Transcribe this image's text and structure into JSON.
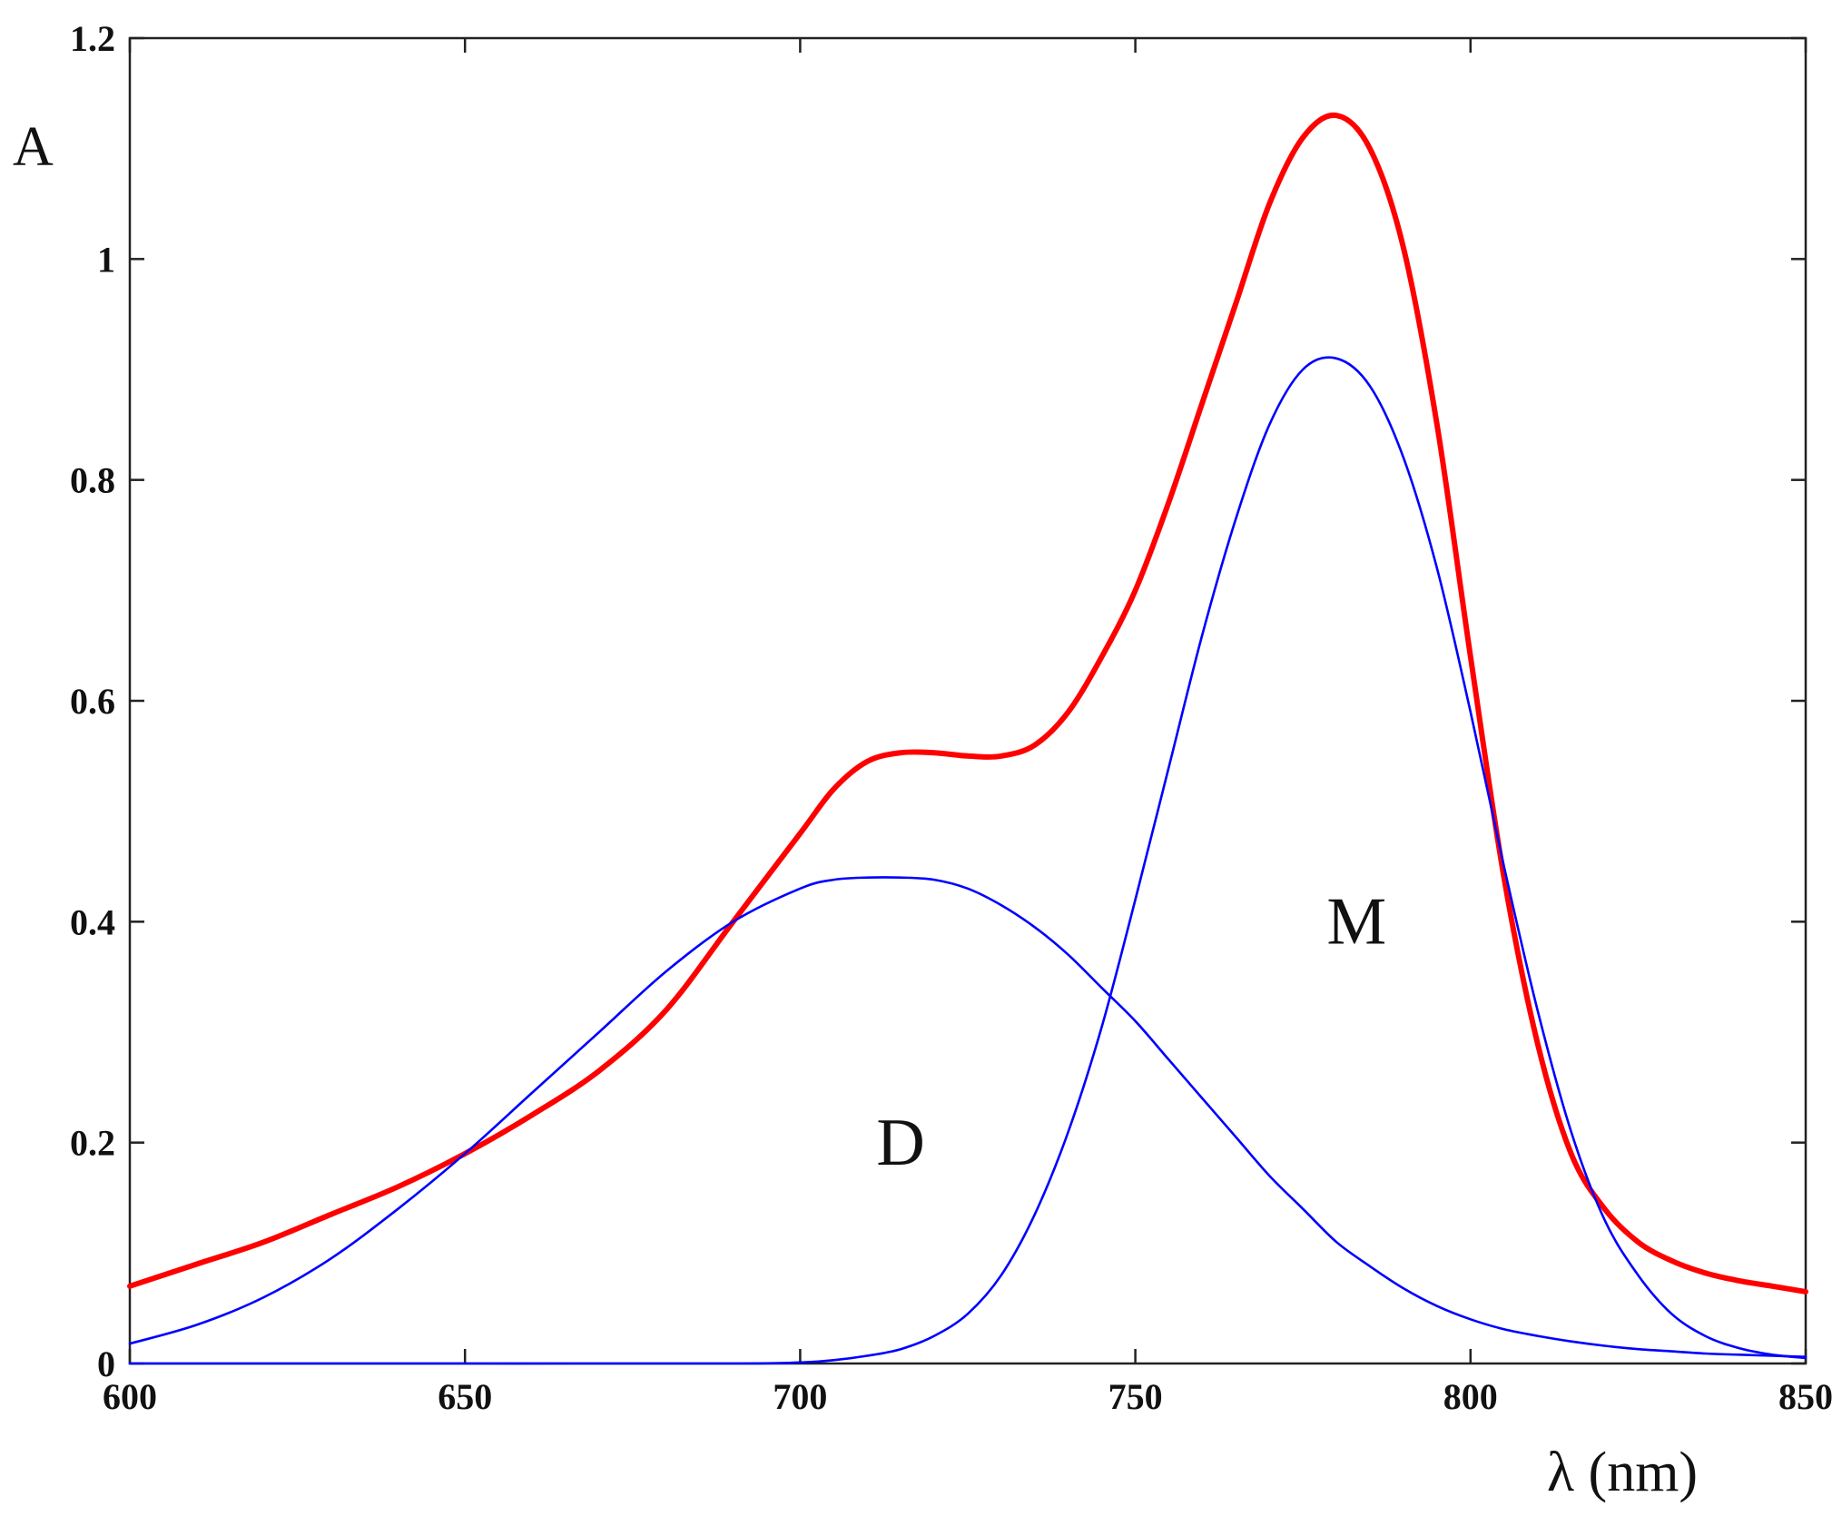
{
  "chart_data": {
    "type": "line",
    "title": "",
    "xlabel": "λ (nm)",
    "ylabel": "A",
    "xlim": [
      600,
      850
    ],
    "ylim": [
      0,
      1.2
    ],
    "x_ticks": [
      600,
      650,
      700,
      750,
      800,
      850
    ],
    "x_tick_labels": [
      "600",
      "650",
      "700",
      "750",
      "800",
      "850"
    ],
    "y_ticks": [
      0,
      0.2,
      0.4,
      0.6,
      0.8,
      1.0,
      1.2
    ],
    "y_tick_labels": [
      "0",
      "0.2",
      "0.4",
      "0.6",
      "0.8",
      "1",
      "1.2"
    ],
    "grid": false,
    "legend": "none",
    "annotations": [
      {
        "text": "D",
        "x": 715,
        "y": 0.18
      },
      {
        "text": "M",
        "x": 783,
        "y": 0.38
      }
    ],
    "series": [
      {
        "color": "#ff0000",
        "x": [
          600,
          610,
          620,
          630,
          640,
          650,
          660,
          670,
          680,
          690,
          700,
          705,
          710,
          715,
          720,
          725,
          730,
          735,
          740,
          745,
          750,
          755,
          760,
          765,
          770,
          775,
          780,
          785,
          790,
          795,
          800,
          805,
          810,
          815,
          820,
          825,
          830,
          835,
          840,
          845,
          850
        ],
        "values": [
          0.07,
          0.09,
          0.11,
          0.135,
          0.16,
          0.19,
          0.225,
          0.265,
          0.32,
          0.4,
          0.48,
          0.52,
          0.545,
          0.553,
          0.553,
          0.55,
          0.55,
          0.56,
          0.59,
          0.64,
          0.7,
          0.78,
          0.87,
          0.96,
          1.05,
          1.11,
          1.13,
          1.1,
          1.01,
          0.85,
          0.64,
          0.44,
          0.29,
          0.19,
          0.14,
          0.11,
          0.093,
          0.082,
          0.075,
          0.07,
          0.065
        ]
      },
      {
        "color": "#0000ff",
        "x": [
          600,
          610,
          620,
          630,
          640,
          650,
          660,
          670,
          680,
          690,
          700,
          705,
          710,
          715,
          720,
          725,
          730,
          735,
          740,
          745,
          750,
          755,
          760,
          765,
          770,
          775,
          780,
          785,
          790,
          795,
          800,
          805,
          810,
          815,
          820,
          825,
          830,
          835,
          840,
          845,
          850
        ],
        "values": [
          0.018,
          0.035,
          0.06,
          0.095,
          0.14,
          0.19,
          0.245,
          0.3,
          0.355,
          0.4,
          0.43,
          0.438,
          0.44,
          0.44,
          0.438,
          0.43,
          0.415,
          0.395,
          0.37,
          0.34,
          0.31,
          0.275,
          0.24,
          0.205,
          0.17,
          0.14,
          0.11,
          0.088,
          0.068,
          0.052,
          0.04,
          0.031,
          0.025,
          0.02,
          0.016,
          0.013,
          0.011,
          0.009,
          0.008,
          0.007,
          0.006
        ]
      },
      {
        "color": "#0000ff",
        "x": [
          600,
          650,
          690,
          700,
          705,
          710,
          715,
          720,
          725,
          730,
          735,
          740,
          745,
          750,
          755,
          760,
          765,
          770,
          775,
          780,
          785,
          790,
          795,
          800,
          805,
          810,
          815,
          820,
          825,
          830,
          835,
          840,
          845,
          850
        ],
        "values": [
          0,
          0,
          0,
          0.001,
          0.003,
          0.007,
          0.013,
          0.025,
          0.045,
          0.08,
          0.135,
          0.21,
          0.305,
          0.42,
          0.54,
          0.66,
          0.765,
          0.85,
          0.9,
          0.91,
          0.885,
          0.82,
          0.72,
          0.59,
          0.45,
          0.32,
          0.21,
          0.13,
          0.08,
          0.045,
          0.025,
          0.014,
          0.008,
          0.005
        ]
      }
    ]
  }
}
